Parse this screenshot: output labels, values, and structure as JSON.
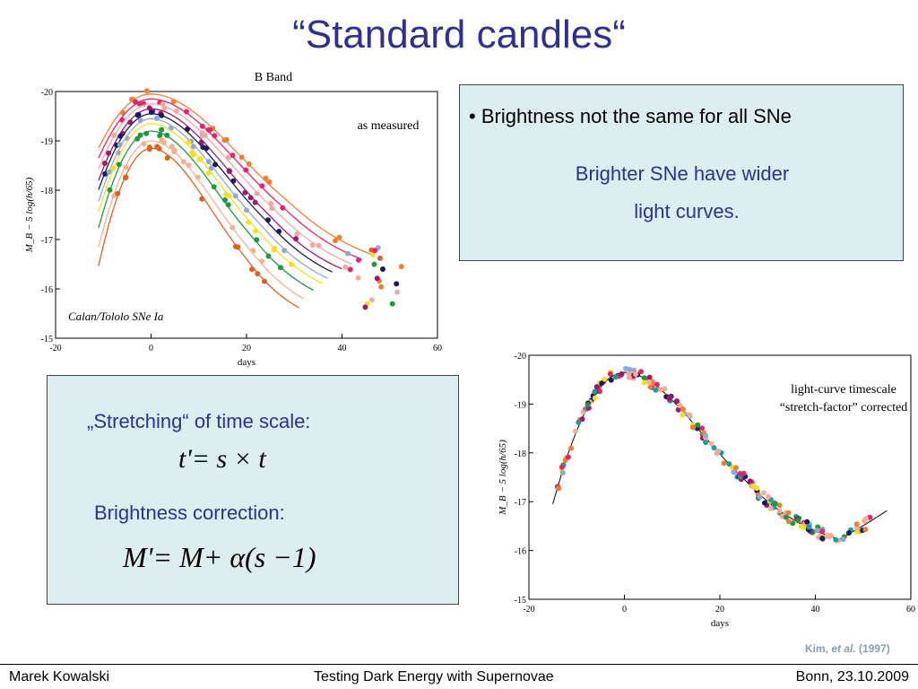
{
  "slide": {
    "title": "“Standard candles“",
    "box1": {
      "bullet": "• Brightness not the same for all SNe",
      "line1": "Brighter SNe have wider",
      "line2": "light curves."
    },
    "box2": {
      "stretch_label": "„Stretching“ of time scale:",
      "formula1": "t'= s × t",
      "correction_label": "Brightness correction:",
      "formula2": "M'= M+ α(s −1)"
    },
    "credit": {
      "authors": "Kim, ",
      "etal": "et al.",
      "year": " (1997)"
    },
    "footer": {
      "left": "Marek Kowalski",
      "center": "Testing Dark Energy with Supernovae",
      "right": "Bonn, 23.10.2009"
    }
  },
  "chart_data": [
    {
      "type": "scatter",
      "title": "B Band",
      "annotation": "as measured",
      "annotation2": "Calan/Tololo SNe Ia",
      "xlabel": "days",
      "ylabel": "M_B − 5 log(h/65)",
      "xlim": [
        -20,
        60
      ],
      "ylim": [
        -15,
        -20
      ],
      "x_ticks": [
        "-20",
        "0",
        "20",
        "40",
        "60"
      ],
      "y_ticks": [
        "-20",
        "-19",
        "-18",
        "-17",
        "-16",
        "-15"
      ],
      "colors": [
        "#f08030",
        "#e8236a",
        "#f4a6a0",
        "#9c1a6e",
        "#1a1a5e",
        "#8fa8d8",
        "#f5e020",
        "#1e9a3c",
        "#f5b090",
        "#e06020"
      ],
      "series": [
        {
          "peak": -19.95,
          "stretch": 1.15
        },
        {
          "peak": -19.85,
          "stretch": 1.1
        },
        {
          "peak": -19.75,
          "stretch": 1.05
        },
        {
          "peak": -19.65,
          "stretch": 1.0
        },
        {
          "peak": -19.55,
          "stretch": 0.97
        },
        {
          "peak": -19.45,
          "stretch": 0.93
        },
        {
          "peak": -19.35,
          "stretch": 0.9
        },
        {
          "peak": -19.2,
          "stretch": 0.86
        },
        {
          "peak": -19.0,
          "stretch": 0.82
        },
        {
          "peak": -18.85,
          "stretch": 0.78
        }
      ]
    },
    {
      "type": "scatter",
      "annotation": "light-curve timescale",
      "annotation2": "“stretch-factor” corrected",
      "xlabel": "days",
      "ylabel": "M_B − 5 log(h/65)",
      "xlim": [
        -20,
        60
      ],
      "ylim": [
        -15,
        -20
      ],
      "x_ticks": [
        "-20",
        "0",
        "20",
        "40",
        "60"
      ],
      "y_ticks": [
        "-20",
        "-19",
        "-18",
        "-17",
        "-16",
        "-15"
      ],
      "peak": -19.65,
      "colors": [
        "#f08030",
        "#e8236a",
        "#f4a6a0",
        "#9c1a6e",
        "#1a1a5e",
        "#8fa8d8",
        "#f5e020",
        "#1e9a3c",
        "#f5b090",
        "#18a0a0"
      ]
    }
  ]
}
